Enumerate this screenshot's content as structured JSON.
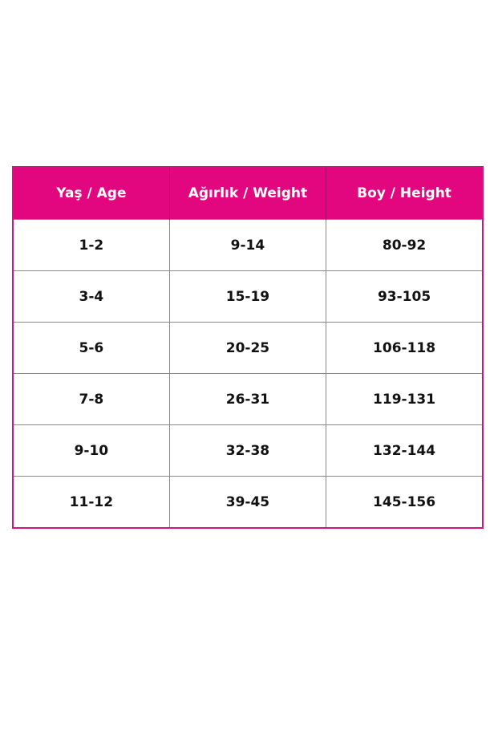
{
  "table": {
    "headers": [
      "Yaş / Age",
      "Ağırlık / Weight",
      "Boy / Height"
    ],
    "rows": [
      [
        "1-2",
        "9-14",
        "80-92"
      ],
      [
        "3-4",
        "15-19",
        "93-105"
      ],
      [
        "5-6",
        "20-25",
        "106-118"
      ],
      [
        "7-8",
        "26-31",
        "119-131"
      ],
      [
        "9-10",
        "32-38",
        "132-144"
      ],
      [
        "11-12",
        "39-45",
        "145-156"
      ]
    ],
    "header_color": "#e2077f"
  }
}
